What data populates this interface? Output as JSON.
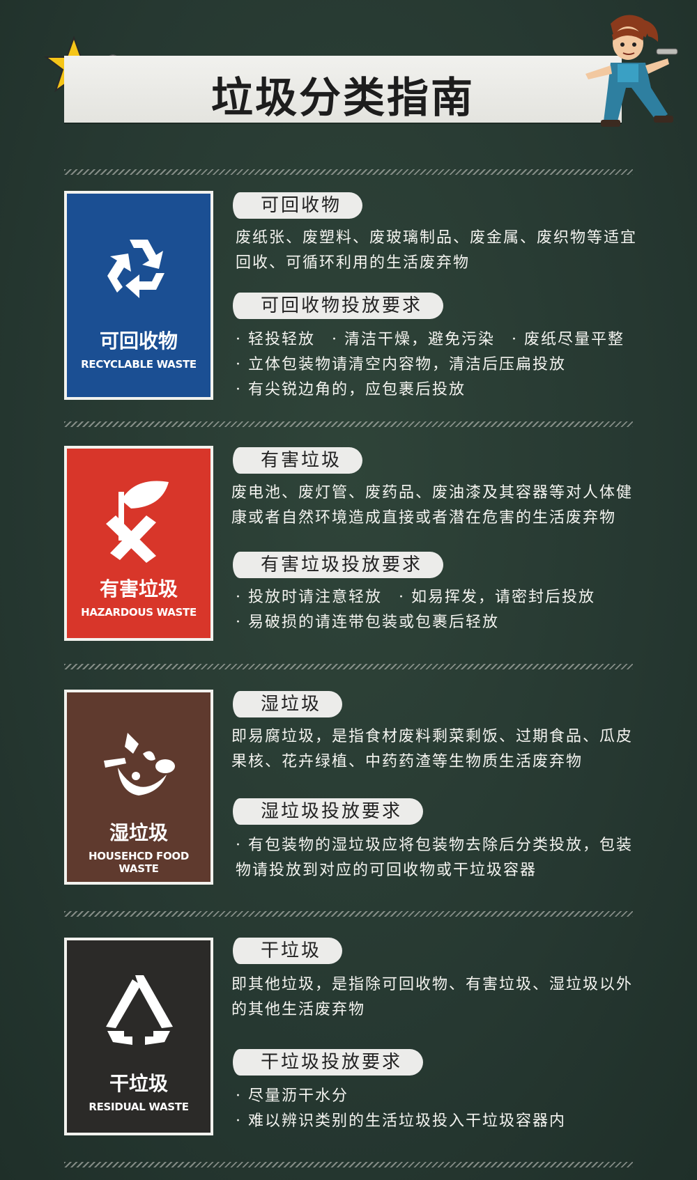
{
  "header": {
    "title": "垃圾分类指南"
  },
  "sections": [
    {
      "card": {
        "name": "可回收物",
        "en": "RECYCLABLE WASTE",
        "color": "#1b4f93",
        "icon": "recycle-icon"
      },
      "title": "可回收物",
      "description": "废纸张、废塑料、废玻璃制品、废金属、废织物等适宜回收、可循环利用的生活废弃物",
      "req_title": "可回收物投放要求",
      "rules": [
        "· 轻投轻放　· 清洁干燥，避免污染　· 废纸尽量平整",
        "· 立体包装物请清空内容物，清洁后压扁投放",
        "· 有尖锐边角的，应包裹后投放"
      ]
    },
    {
      "card": {
        "name": "有害垃圾",
        "en": "HAZARDOUS WASTE",
        "color": "#d8362a",
        "icon": "hazardous-icon"
      },
      "title": "有害垃圾",
      "description": "废电池、废灯管、废药品、废油漆及其容器等对人体健康或者自然环境造成直接或者潜在危害的生活废弃物",
      "req_title": "有害垃圾投放要求",
      "rules": [
        "· 投放时请注意轻放　· 如易挥发，请密封后投放",
        "· 易破损的请连带包装或包裹后轻放"
      ]
    },
    {
      "card": {
        "name": "湿垃圾",
        "en": "HOUSEHCD FOOD WASTE",
        "color": "#5f3a2e",
        "icon": "food-waste-icon"
      },
      "title": "湿垃圾",
      "description": "即易腐垃圾，是指食材废料剩菜剩饭、过期食品、瓜皮果核、花卉绿植、中药药渣等生物质生活废弃物",
      "req_title": "湿垃圾投放要求",
      "rules": [
        "· 有包装物的湿垃圾应将包装物去除后分类投放，包装物请投放到对应的可回收物或干垃圾容器"
      ]
    },
    {
      "card": {
        "name": "干垃圾",
        "en": "RESIDUAL WASTE",
        "color": "#2b2a28",
        "icon": "residual-icon"
      },
      "title": "干垃圾",
      "description": "即其他垃圾，是指除可回收物、有害垃圾、湿垃圾以外的其他生活废弃物",
      "req_title": "干垃圾投放要求",
      "rules": [
        "· 尽量沥干水分",
        "· 难以辨识类别的生活垃圾投入干垃圾容器内"
      ]
    }
  ]
}
